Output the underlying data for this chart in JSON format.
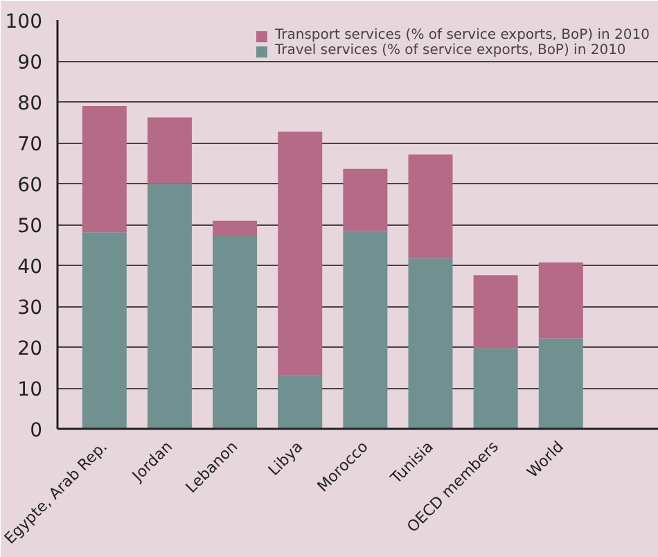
{
  "chart_data": {
    "type": "bar",
    "stacked": true,
    "categories": [
      "Egypte, Arab Rep.",
      "Jordan",
      "Lebanon",
      "Libya",
      "Morocco",
      "Tunisia",
      "OECD members",
      "World"
    ],
    "series": [
      {
        "name": "Travel services (% of service exports, BoP) in 2010",
        "color": "#719090",
        "values": [
          48.1,
          60.1,
          47.1,
          13,
          48.4,
          41.8,
          19.7,
          22.1
        ]
      },
      {
        "name": "Transport services (% of service exports, BoP) in 2010",
        "color": "#b56a87",
        "values": [
          30.9,
          16.1,
          3.8,
          59.7,
          15.2,
          25.3,
          17.9,
          18.6
        ]
      }
    ],
    "ylim": [
      0,
      100
    ],
    "yticks": [
      0,
      10,
      20,
      30,
      40,
      50,
      60,
      70,
      80,
      90,
      100
    ],
    "grid": "y",
    "legend": "top right"
  }
}
